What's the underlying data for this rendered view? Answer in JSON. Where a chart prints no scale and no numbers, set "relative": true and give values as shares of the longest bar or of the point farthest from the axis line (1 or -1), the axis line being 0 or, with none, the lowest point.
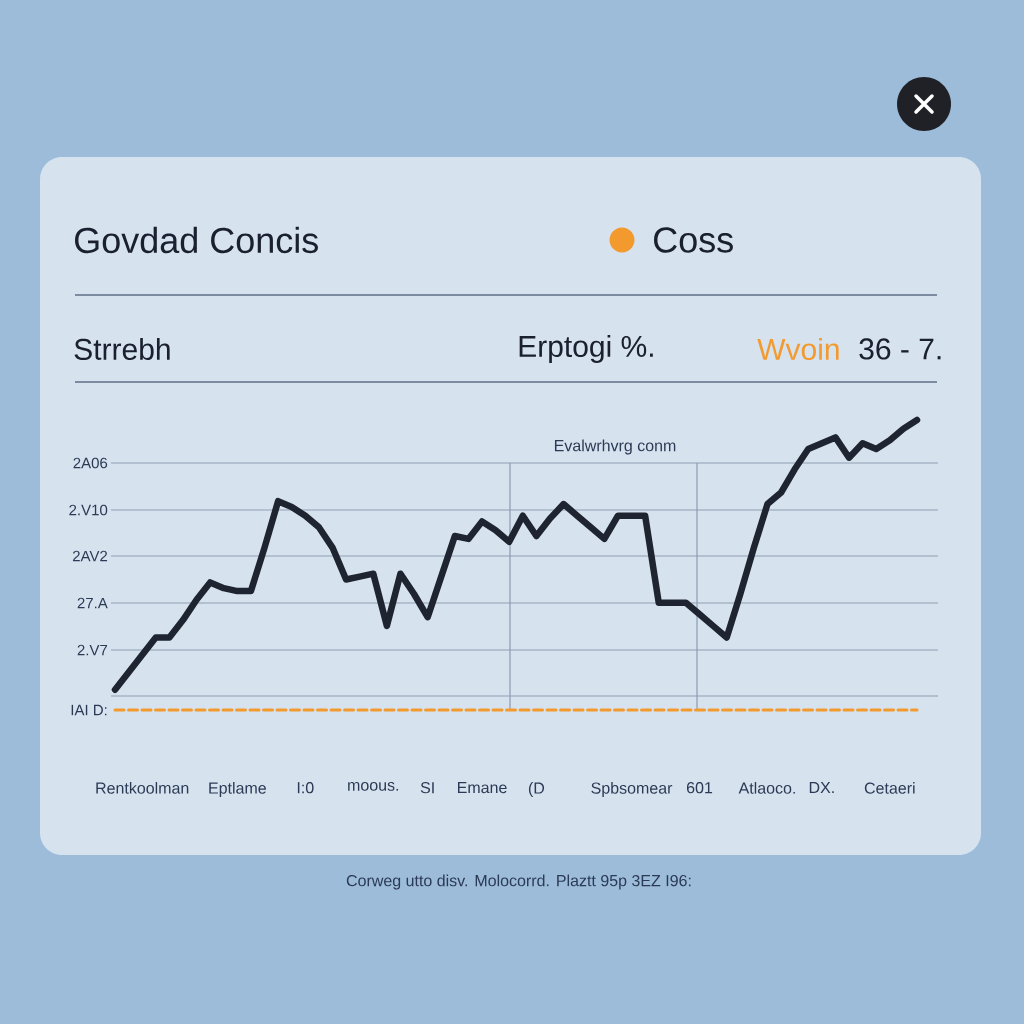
{
  "chart_data": {
    "type": "line",
    "title": "Govdad Concis",
    "relative": true,
    "annotations": [
      "Strrebh",
      "Erptogi %.",
      "Wvoin",
      "36 - 7.",
      "Evalwrhvrg conm",
      "2A06",
      "2.V10",
      "2AV2",
      "27.A",
      "2.V7",
      "IAI D:",
      "Corweg utto disv. Molocorrd. Plaztt 95p 3EZ I96:"
    ],
    "categories": [
      null,
      null,
      "Rentkoolman",
      null,
      null,
      null,
      null,
      null,
      null,
      "Eptlame",
      null,
      null,
      null,
      null,
      "I:0",
      null,
      null,
      null,
      null,
      "moous.",
      null,
      null,
      null,
      "SI",
      null,
      null,
      null,
      "Emane",
      null,
      null,
      null,
      "(D",
      null,
      null,
      null,
      null,
      null,
      null,
      "Spbsomear",
      null,
      null,
      null,
      null,
      "601",
      null,
      null,
      null,
      null,
      "Atlaoco.",
      null,
      null,
      null,
      "DX.",
      null,
      null,
      null,
      null,
      "Cetaeri",
      null,
      null
    ],
    "grid": "y",
    "legend": "top",
    "series": [
      {
        "color": "#1e2430",
        "values": [
          0.07,
          0.13,
          0.19,
          0.25,
          0.25,
          0.31,
          0.38,
          0.44,
          0.42,
          0.41,
          0.41,
          0.56,
          0.72,
          0.7,
          0.67,
          0.63,
          0.56,
          0.45,
          0.46,
          0.47,
          0.29,
          0.47,
          0.4,
          0.32,
          0.46,
          0.6,
          0.59,
          0.65,
          0.62,
          0.58,
          0.67,
          0.6,
          0.66,
          0.71,
          0.67,
          0.63,
          0.59,
          0.67,
          0.67,
          0.67,
          0.37,
          0.37,
          0.37,
          0.33,
          0.29,
          0.25,
          0.4,
          0.56,
          0.71,
          0.75,
          0.83,
          0.9,
          0.92,
          0.94,
          0.87,
          0.92,
          0.9,
          0.93,
          0.97,
          1.0
        ]
      },
      {
        "name": "Coss",
        "color": "#f39a2e",
        "line_style": "dashed",
        "values": [
          0,
          0,
          0,
          0,
          0,
          0,
          0,
          0,
          0,
          0,
          0,
          0,
          0,
          0,
          0,
          0,
          0,
          0,
          0,
          0,
          0,
          0,
          0,
          0,
          0,
          0,
          0,
          0,
          0,
          0,
          0,
          0,
          0,
          0,
          0,
          0,
          0,
          0,
          0,
          0,
          0,
          0,
          0,
          0,
          0,
          0,
          0,
          0,
          0,
          0,
          0,
          0,
          0,
          0,
          0,
          0,
          0,
          0,
          0,
          0
        ]
      }
    ]
  }
}
